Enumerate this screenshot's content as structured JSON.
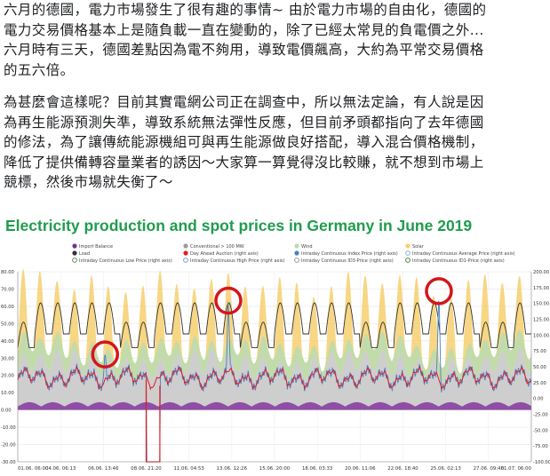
{
  "post": {
    "paragraph1": [
      "六月的德國，電力市場發生了很有趣的事情~ 由於電力市場的自由化，德國的",
      "電力交易價格基本上是隨負載一直在變動的，除了已經太常見的負電價之外...",
      "六月時有三天，德國差點因為電不夠用，導致電價飆高，大約為平常交易價格",
      "的五六倍。"
    ],
    "paragraph2": [
      "為甚麼會這樣呢？目前其實電網公司正在調查中，所以無法定論，有人說是因",
      "為再生能源預測失準，導致系統無法彈性反應，但目前矛頭都指向了去年德國",
      "的修法，為了讓傳統能源機組可與再生能源做良好搭配，導入混合價格機制，",
      "降低了提供備轉容量業者的誘因～大家算一算覺得沒比較賺，就不想到市場上",
      "競標，然後市場就失衡了～"
    ]
  },
  "colors": {
    "title_green": "#1f9c4d",
    "import_balance": "#7b2f93",
    "conventional": "#9a9a9a",
    "wind": "#b9dcb0",
    "solar": "#f6cf6e",
    "load": "#333333",
    "day_ahead": "#e31a1c",
    "intraday_index": "#4a7fc1",
    "highlight_circle": "#d4161c"
  },
  "chart_data": {
    "type": "area",
    "title": "Electricity production and spot prices in Germany in June 2019",
    "legend_position": "top",
    "legend": [
      {
        "label": "Import Balance",
        "color": "#7b2f93",
        "kind": "dot"
      },
      {
        "label": "Conventional > 100 MW",
        "color": "#9a9a9a",
        "kind": "dot"
      },
      {
        "label": "Wind",
        "color": "#b9dcb0",
        "kind": "dot"
      },
      {
        "label": "Solar",
        "color": "#f6cf6e",
        "kind": "dot"
      },
      {
        "label": "Load",
        "color": "#333333",
        "kind": "dot"
      },
      {
        "label": "Day Ahead Auction (right axis)",
        "color": "#e31a1c",
        "kind": "dot"
      },
      {
        "label": "Intraday Continuous Index Price (right axis)",
        "color": "#4a7fc1",
        "kind": "dot"
      },
      {
        "label": "Intraday Continuous Average Price (right axis)",
        "color": "#8ab0d8",
        "kind": "ring"
      },
      {
        "label": "Intraday Continuous Low Price (right axis)",
        "color": "#5a8f5a",
        "kind": "ring"
      },
      {
        "label": "Intraday Continuous High Price (right axis)",
        "color": "#6f9fce",
        "kind": "ring"
      },
      {
        "label": "Intraday Continuous ID3-Price (right axis)",
        "color": "#999999",
        "kind": "ring"
      },
      {
        "label": "Intraday Continuous ID1-Price (right axis)",
        "color": "#3a8a3a",
        "kind": "ring"
      }
    ],
    "left_axis": {
      "ylim": [
        -30,
        80
      ],
      "ticks": [
        "80.00",
        "70.00",
        "60.00",
        "50.00",
        "40.00",
        "30.00",
        "20.00",
        "10.00",
        "0.00",
        "-10.00",
        "-20.00",
        "-30.00"
      ]
    },
    "right_axis": {
      "ylim": [
        -100,
        200
      ],
      "ticks": [
        "200.00",
        "175.00",
        "150.00",
        "125.00",
        "100.00",
        "75.00",
        "50.00",
        "25.00",
        "0.00",
        "-25.00",
        "-50.00",
        "-75.00",
        "-100.00"
      ]
    },
    "x_ticks": [
      "01.06. 06:00",
      "04.06. 06:13",
      "06.06. 13:46",
      "08.06. 21:20",
      "11.06. 04:53",
      "13.06. 12:26",
      "15.06. 20:00",
      "18.06. 03:33",
      "20.06. 11:06",
      "22.06. 18:40",
      "25.06. 02:13",
      "27.06. 09:46",
      "01.07. 06:00"
    ],
    "x_range_days": [
      0,
      30
    ],
    "price_spikes": [
      {
        "day": 5.1,
        "price": 75
      },
      {
        "day": 12.3,
        "price": 160
      },
      {
        "day": 24.6,
        "price": 175
      }
    ],
    "deep_negative_dip": {
      "day_start": 7.5,
      "day_end": 8.3,
      "price": -100
    }
  }
}
